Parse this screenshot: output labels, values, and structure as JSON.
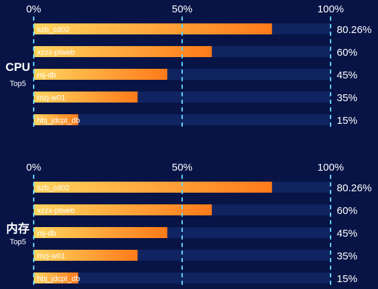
{
  "colors": {
    "background": "#081446",
    "track": "#0f2460",
    "bar_start": "#ffd45e",
    "bar_end": "#ff7a1a",
    "gridline": "#5fd3ff",
    "text": "#ffffff"
  },
  "chart_data": [
    {
      "type": "bar",
      "orientation": "horizontal",
      "title": "CPU",
      "subtitle": "Top5",
      "xlim": [
        0,
        100
      ],
      "x_ticks": [
        "0%",
        "50%",
        "100%"
      ],
      "grid": true,
      "categories": [
        "szb_cd02",
        "xzzx-ptweb",
        "rsj-db",
        "mzj-w01",
        "hbj_jdcpt_db"
      ],
      "values": [
        80.26,
        60,
        45,
        35,
        15
      ],
      "value_labels": [
        "80.26%",
        "60%",
        "45%",
        "35%",
        "15%"
      ]
    },
    {
      "type": "bar",
      "orientation": "horizontal",
      "title": "内存",
      "subtitle": "Top5",
      "xlim": [
        0,
        100
      ],
      "x_ticks": [
        "0%",
        "50%",
        "100%"
      ],
      "grid": true,
      "categories": [
        "szb_cd02",
        "xzzx-ptweb",
        "rsj-db",
        "mzj-w01",
        "hbj_jdcpt_db"
      ],
      "values": [
        80.26,
        60,
        45,
        35,
        15
      ],
      "value_labels": [
        "80.26%",
        "60%",
        "45%",
        "35%",
        "15%"
      ]
    }
  ]
}
